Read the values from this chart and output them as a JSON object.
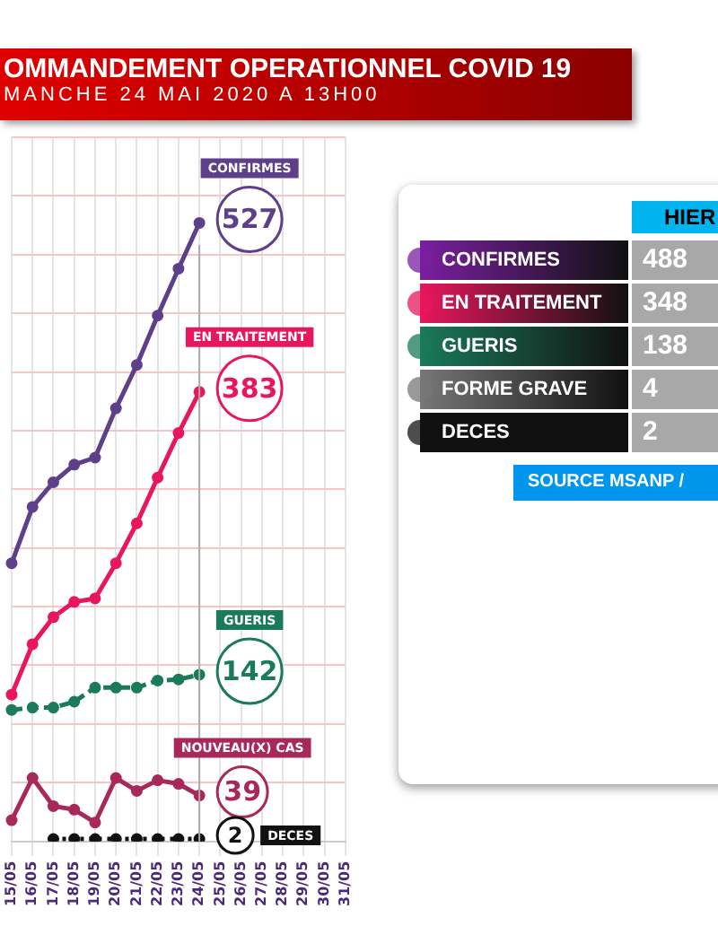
{
  "chart_data": [
    {
      "type": "line",
      "title": "OMMANDEMENT OPERATIONNEL COVID 19",
      "subtitle": "MANCHE 24 MAI 2020 A 13H00",
      "categories": [
        "15/05",
        "16/05",
        "17/05",
        "18/05",
        "19/05",
        "20/05",
        "21/05",
        "22/05",
        "23/05",
        "24/05",
        "25/05",
        "26/05",
        "27/05",
        "28/05",
        "29/05",
        "30/05",
        "31/05"
      ],
      "series": [
        {
          "name": "CONFIRMES",
          "color": "#5e3f8a",
          "values": [
            237,
            285,
            306,
            321,
            327,
            369,
            406,
            448,
            488,
            527,
            null,
            null,
            null,
            null,
            null,
            null,
            null
          ],
          "value_labels": [
            null,
            null,
            null,
            null,
            null,
            null,
            null,
            null,
            null,
            "527",
            null,
            null,
            null,
            null,
            null,
            null,
            null
          ]
        },
        {
          "name": "EN TRAITEMENT",
          "color": "#e8175d",
          "values": [
            125,
            168,
            191,
            204,
            207,
            237,
            271,
            310,
            348,
            383,
            null,
            null,
            null,
            null,
            null,
            null,
            null
          ],
          "value_labels": [
            null,
            null,
            null,
            null,
            null,
            null,
            null,
            null,
            null,
            "383",
            null,
            null,
            null,
            null,
            null,
            null,
            null
          ]
        },
        {
          "name": "GUERIS",
          "color": "#1a7a5a",
          "line_style": "dashed",
          "values": [
            112,
            114,
            114,
            119,
            131,
            131,
            131,
            137,
            138,
            142,
            null,
            null,
            null,
            null,
            null,
            null,
            null
          ],
          "value_labels": [
            null,
            null,
            null,
            null,
            null,
            null,
            null,
            null,
            null,
            "142",
            null,
            null,
            null,
            null,
            null,
            null,
            null
          ]
        },
        {
          "name": "NOUVEAU(X) CAS",
          "color": "#a8285a",
          "values": [
            18,
            54,
            30,
            27,
            16,
            54,
            43,
            52,
            49,
            39,
            null,
            null,
            null,
            null,
            null,
            null,
            null
          ],
          "value_labels": [
            null,
            null,
            null,
            null,
            null,
            null,
            null,
            null,
            null,
            "39",
            null,
            null,
            null,
            null,
            null,
            null,
            null
          ]
        },
        {
          "name": "DECES",
          "color": "#111111",
          "line_style": "dotted",
          "values": [
            null,
            null,
            2,
            2,
            2,
            2,
            2,
            2,
            2,
            2,
            null,
            null,
            null,
            null,
            null,
            null,
            null
          ],
          "value_labels": [
            null,
            null,
            null,
            null,
            null,
            null,
            null,
            null,
            null,
            "2",
            null,
            null,
            null,
            null,
            null,
            null,
            null
          ]
        }
      ],
      "ylim": [
        0,
        600
      ],
      "yticks": [
        {
          "value": 0,
          "label": null
        },
        {
          "value": 50,
          "label": null
        },
        {
          "value": 100,
          "label": null
        },
        {
          "value": 150,
          "label": null
        },
        {
          "value": 200,
          "label": null
        },
        {
          "value": 250,
          "label": null
        },
        {
          "value": 300,
          "label": null
        },
        {
          "value": 350,
          "label": null
        },
        {
          "value": 400,
          "label": null
        },
        {
          "value": 450,
          "label": null
        },
        {
          "value": 500,
          "label": null
        },
        {
          "value": 550,
          "label": null
        },
        {
          "value": 600,
          "label": null
        }
      ],
      "ref_lines": [
        {
          "axis": "x",
          "value": "24/05",
          "color": "#aaaaaa"
        }
      ],
      "tick_labels": "x",
      "grid": true,
      "marker": "circle",
      "legend": false
    },
    {
      "type": "other",
      "title": "HIER",
      "categories": [
        "CONFIRMES",
        "EN TRAITEMENT",
        "GUERIS",
        "FORME GRAVE",
        "DECES"
      ],
      "values": [
        488,
        348,
        138,
        4,
        2
      ],
      "data_labels": true,
      "annotations": [
        "SOURCE MSANP / "
      ]
    }
  ]
}
